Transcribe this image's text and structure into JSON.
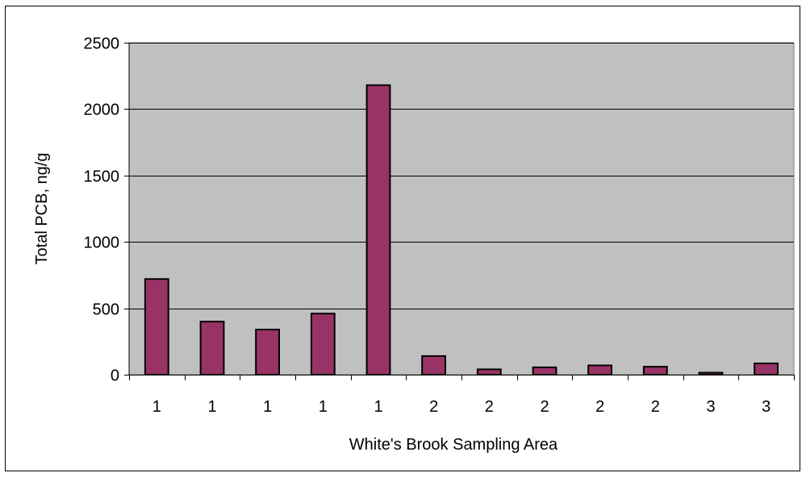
{
  "chart_data": {
    "type": "bar",
    "title": "",
    "xlabel": "White's Brook Sampling Area",
    "ylabel": "Total PCB, ng/g",
    "categories": [
      "1",
      "1",
      "1",
      "1",
      "1",
      "2",
      "2",
      "2",
      "2",
      "2",
      "3",
      "3"
    ],
    "values": [
      720,
      400,
      340,
      460,
      2180,
      140,
      40,
      55,
      70,
      60,
      15,
      85
    ],
    "ylim": [
      0,
      2500
    ],
    "yticks": [
      0,
      500,
      1000,
      1500,
      2000,
      2500
    ],
    "grid": true,
    "legend": "none",
    "colors": {
      "bar_fill": "#993366",
      "plot_background": "#c0c0c0",
      "gridline": "#000000"
    }
  }
}
